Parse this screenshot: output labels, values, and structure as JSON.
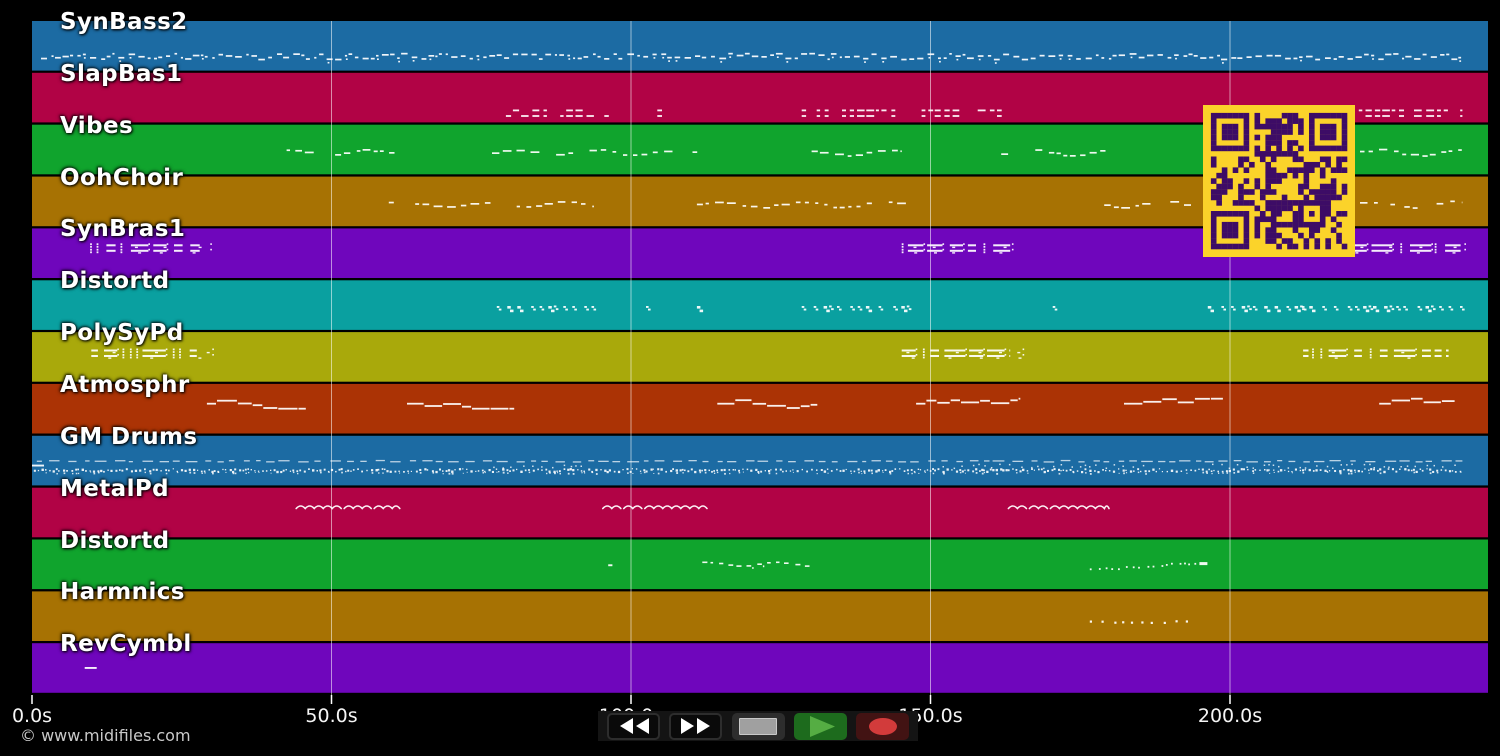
{
  "page": {
    "background": "#000000"
  },
  "watermark": {
    "text": "© www.midifiles.com",
    "color": "#c9c9c9"
  },
  "axis": {
    "unit": "s",
    "tick_color": "#ffffff",
    "label_color": "#f5f5f5",
    "grid_color": "rgba(255,255,255,0.55)",
    "ticks": [
      {
        "t": 0,
        "label": "0.0s"
      },
      {
        "t": 50,
        "label": "50.0s"
      },
      {
        "t": 100,
        "label": "100.0s"
      },
      {
        "t": 150,
        "label": "150.0s"
      },
      {
        "t": 200,
        "label": "200.0s"
      }
    ]
  },
  "transport": {
    "bar_bg": "#141414",
    "buttons": [
      {
        "name": "rewind",
        "icon": "rewind-icon",
        "bg": "#0a0a0a",
        "border": "#2d2d2d",
        "glyph_color": "#ffffff"
      },
      {
        "name": "fast-forward",
        "icon": "fast-forward-icon",
        "bg": "#0a0a0a",
        "border": "#2d2d2d",
        "glyph_color": "#ffffff"
      },
      {
        "name": "stop",
        "icon": "stop-icon",
        "bg": "#2d2d2d",
        "glyph_color": "#a0a0a0",
        "glyph_border": "#c9c9c9"
      },
      {
        "name": "play",
        "icon": "play-icon",
        "bg": "#1d6b1d",
        "glyph_color": "#55ad43"
      },
      {
        "name": "record",
        "icon": "record-icon",
        "bg": "#421313",
        "glyph_color": "#d23b3b"
      }
    ]
  },
  "qr": {
    "bg": "#fbd32a",
    "fg": "#3d0c66"
  },
  "tracks": [
    {
      "name": "SynBass2",
      "color": "#1c6ba3",
      "notes": [
        {
          "t0": 1.5,
          "t1": 238.8,
          "type": "squiggle",
          "y": 0.7
        }
      ]
    },
    {
      "name": "SlapBas1",
      "color": "#b10345",
      "notes": [
        {
          "t0": 77.3,
          "t1": 96.5,
          "type": "dash2",
          "y": 0.8
        },
        {
          "t0": 103.0,
          "t1": 105.5,
          "type": "dash2",
          "y": 0.8
        },
        {
          "t0": 128.5,
          "t1": 162.5,
          "type": "dash2",
          "y": 0.8
        },
        {
          "t0": 221.5,
          "t1": 238.8,
          "type": "dash2",
          "y": 0.8
        }
      ]
    },
    {
      "name": "Vibes",
      "color": "#10a42d",
      "notes": [
        {
          "t0": 42.5,
          "t1": 61.5,
          "type": "wave",
          "y": 0.55
        },
        {
          "t0": 76.8,
          "t1": 111.5,
          "type": "wave",
          "y": 0.55
        },
        {
          "t0": 127.9,
          "t1": 145.2,
          "type": "wave",
          "y": 0.55
        },
        {
          "t0": 161.8,
          "t1": 179.8,
          "type": "wave",
          "y": 0.55
        },
        {
          "t0": 221.7,
          "t1": 238.8,
          "type": "wave",
          "y": 0.55
        }
      ]
    },
    {
      "name": "OohChoir",
      "color": "#a77203",
      "notes": [
        {
          "t0": 57.9,
          "t1": 93.8,
          "type": "wave",
          "y": 0.55
        },
        {
          "t0": 111.0,
          "t1": 146.0,
          "type": "wave",
          "y": 0.55
        },
        {
          "t0": 179.0,
          "t1": 195.7,
          "type": "wave",
          "y": 0.55
        },
        {
          "t0": 221.7,
          "t1": 238.8,
          "type": "wave",
          "y": 0.55
        }
      ]
    },
    {
      "name": "SynBras1",
      "color": "#6f06bc",
      "notes": [
        {
          "t0": 9.7,
          "t1": 28.0,
          "type": "blocks",
          "y": 0.3
        },
        {
          "t0": 145.2,
          "t1": 163.3,
          "type": "blocks",
          "y": 0.3
        },
        {
          "t0": 220.0,
          "t1": 238.5,
          "type": "blocks",
          "y": 0.3
        }
      ]
    },
    {
      "name": "Distortd",
      "color": "#0aa0a0",
      "notes": [
        {
          "t0": 77.6,
          "t1": 94.7,
          "type": "ss",
          "y": 0.52
        },
        {
          "t0": 102.5,
          "t1": 104.5,
          "type": "ss",
          "y": 0.52
        },
        {
          "t0": 111.0,
          "t1": 112.2,
          "type": "ss",
          "y": 0.52
        },
        {
          "t0": 128.5,
          "t1": 146.0,
          "type": "ss",
          "y": 0.52
        },
        {
          "t0": 170.4,
          "t1": 171.4,
          "type": "ss",
          "y": 0.52
        },
        {
          "t0": 196.3,
          "t1": 238.8,
          "type": "ss",
          "y": 0.52
        }
      ]
    },
    {
      "name": "PolySyPd",
      "color": "#a9a90b",
      "notes": [
        {
          "t0": 9.9,
          "t1": 27.5,
          "type": "blocks",
          "y": 0.33
        },
        {
          "t0": 145.2,
          "t1": 163.3,
          "type": "blocks",
          "y": 0.33
        },
        {
          "t0": 212.2,
          "t1": 236.5,
          "type": "blocks",
          "y": 0.33
        }
      ]
    },
    {
      "name": "Atmosphr",
      "color": "#ab3305",
      "notes": [
        {
          "t0": 29.2,
          "t1": 45.7,
          "type": "steps",
          "y": 0.38
        },
        {
          "t0": 62.6,
          "t1": 80.5,
          "type": "steps",
          "y": 0.38
        },
        {
          "t0": 114.4,
          "t1": 131.1,
          "type": "steps",
          "y": 0.38
        },
        {
          "t0": 147.6,
          "t1": 165.0,
          "type": "steps",
          "y": 0.38
        },
        {
          "t0": 182.3,
          "t1": 198.8,
          "type": "steps",
          "y": 0.38
        },
        {
          "t0": 224.9,
          "t1": 237.5,
          "type": "steps",
          "y": 0.38
        }
      ]
    },
    {
      "name": "GM Drums",
      "color": "#1c6ba3",
      "notes": [
        {
          "t0": 0.0,
          "t1": 2.0,
          "type": "dash",
          "y": 0.58
        },
        {
          "t0": 0.8,
          "t1": 238.8,
          "type": "dashline",
          "y": 0.5
        },
        {
          "t0": 0.3,
          "t1": 238.8,
          "type": "dotsdense",
          "y": 0.68
        },
        {
          "t0": 77.0,
          "t1": 92.0,
          "type": "dotsupper",
          "y": 0.6
        },
        {
          "t0": 152.0,
          "t1": 186.0,
          "type": "dotsupper",
          "y": 0.6
        },
        {
          "t0": 197.0,
          "t1": 238.0,
          "type": "dotsupper",
          "y": 0.6
        }
      ]
    },
    {
      "name": "MetalPd",
      "color": "#b10345",
      "notes": [
        {
          "t0": 44.1,
          "t1": 61.4,
          "type": "scallop",
          "y": 0.42
        },
        {
          "t0": 95.3,
          "t1": 112.7,
          "type": "scallop",
          "y": 0.42
        },
        {
          "t0": 163.0,
          "t1": 179.8,
          "type": "scallop",
          "y": 0.42
        }
      ]
    },
    {
      "name": "Distortd",
      "color": "#10a42d",
      "notes": [
        {
          "t0": 96.2,
          "t1": 96.9,
          "type": "dash",
          "y": 0.5
        },
        {
          "t0": 111.9,
          "t1": 129.4,
          "type": "wavedash",
          "y": 0.48
        },
        {
          "t0": 176.6,
          "t1": 196.3,
          "type": "dotsrise",
          "y": 0.52
        }
      ]
    },
    {
      "name": "Harmnics",
      "color": "#a77203",
      "notes": [
        {
          "t0": 176.6,
          "t1": 194.0,
          "type": "dots",
          "y": 0.6
        }
      ]
    },
    {
      "name": "RevCymbl",
      "color": "#6f06bc",
      "notes": [
        {
          "t0": 8.8,
          "t1": 10.8,
          "type": "dash",
          "y": 0.48
        }
      ]
    }
  ]
}
